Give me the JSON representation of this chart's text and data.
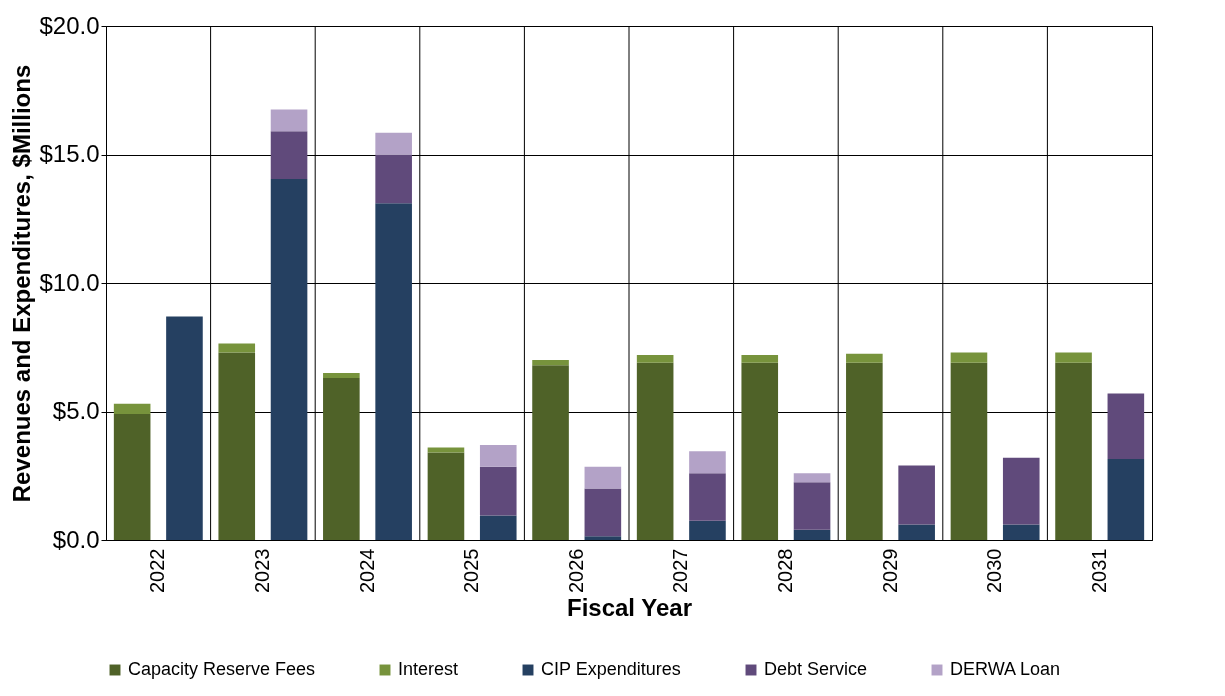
{
  "chart_data": {
    "type": "bar",
    "stacked": true,
    "xlabel": "Fiscal Year",
    "ylabel": "Revenues and Expenditures, $Millions",
    "categories": [
      "2022",
      null,
      "2023",
      null,
      "2024",
      null,
      "2025",
      null,
      "2026",
      null,
      "2027",
      null,
      "2028",
      null,
      "2029",
      null,
      "2030",
      null,
      "2031",
      null
    ],
    "series": [
      {
        "name": "Capacity Reserve Fees",
        "color": "#4f6228",
        "values": [
          4.9,
          null,
          7.3,
          null,
          6.3,
          null,
          3.4,
          null,
          6.8,
          null,
          6.9,
          null,
          6.9,
          null,
          6.9,
          null,
          6.9,
          null,
          6.9,
          null
        ]
      },
      {
        "name": "Interest",
        "color": "#77933c",
        "values": [
          0.4,
          null,
          0.35,
          null,
          0.2,
          null,
          0.2,
          null,
          0.2,
          null,
          0.3,
          null,
          0.3,
          null,
          0.35,
          null,
          0.4,
          null,
          0.4,
          null
        ]
      },
      {
        "name": "CIP Expenditures",
        "color": "#254061",
        "values": [
          null,
          8.7,
          null,
          14.05,
          null,
          13.1,
          null,
          0.95,
          null,
          0.15,
          null,
          0.75,
          null,
          0.4,
          null,
          0.6,
          null,
          0.6,
          null,
          3.15
        ]
      },
      {
        "name": "Debt Service",
        "color": "#604a7b",
        "values": [
          null,
          null,
          null,
          1.85,
          null,
          1.9,
          null,
          1.9,
          null,
          1.85,
          null,
          1.85,
          null,
          1.85,
          null,
          2.3,
          null,
          2.6,
          null,
          2.55
        ]
      },
      {
        "name": "DERWA Loan",
        "color": "#b3a2c7",
        "values": [
          null,
          null,
          null,
          0.85,
          null,
          0.85,
          null,
          0.85,
          null,
          0.85,
          null,
          0.85,
          null,
          0.35,
          null,
          null,
          null,
          null,
          null,
          null
        ]
      }
    ],
    "ylim": [
      0,
      20
    ],
    "yticks": [
      {
        "value": 0,
        "label": "$0.0"
      },
      {
        "value": 5,
        "label": "$5.0"
      },
      {
        "value": 10,
        "label": "$10.0"
      },
      {
        "value": 15,
        "label": "$15.0"
      },
      {
        "value": 20,
        "label": "$20.0"
      }
    ],
    "grid": true,
    "legend": "bottom"
  }
}
